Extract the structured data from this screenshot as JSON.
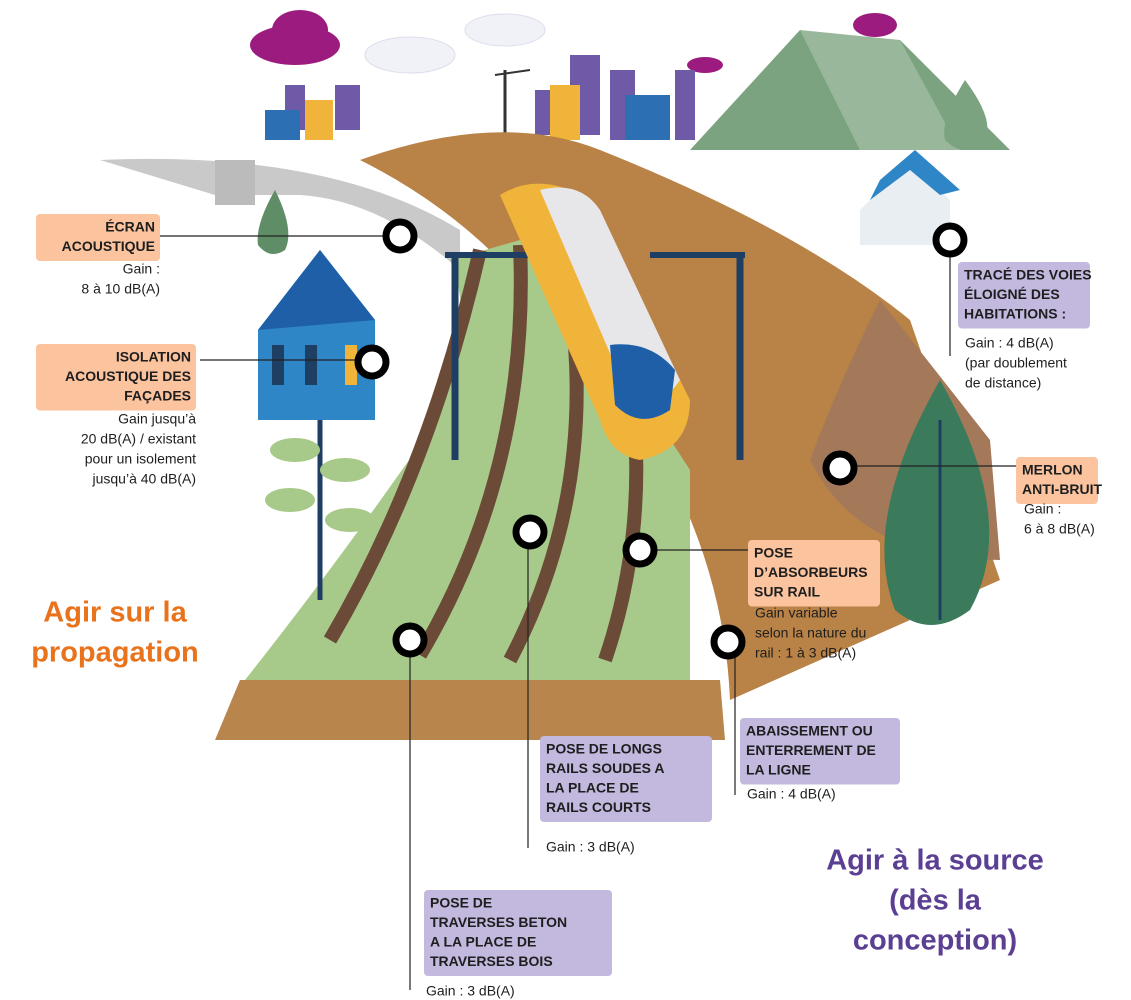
{
  "headings": {
    "propagation": [
      "Agir sur la",
      "propagation"
    ],
    "source": [
      "Agir à la source",
      "(dès la",
      "conception)"
    ]
  },
  "labels": [
    {
      "title": [
        "ÉCRAN",
        "ACOUSTIQUE"
      ],
      "gain": [
        "Gain :",
        "8 à 10 dB(A)"
      ]
    },
    {
      "title": [
        "ISOLATION",
        "ACOUSTIQUE DES",
        "FAÇADES"
      ],
      "gain": [
        "Gain jusqu’à",
        "20 dB(A) / existant",
        "pour un isolement",
        "jusqu’à 40 dB(A)"
      ]
    },
    {
      "title": [
        "TRACÉ DES VOIES",
        "ÉLOIGNÉ DES",
        "HABITATIONS  :"
      ],
      "gain": [
        "Gain : 4 dB(A)",
        "(par doublement",
        "de distance)"
      ]
    },
    {
      "title": [
        "MERLON",
        "ANTI-BRUIT"
      ],
      "gain": [
        "Gain :",
        "6 à 8 dB(A)"
      ]
    },
    {
      "title": [
        "POSE",
        "D’ABSORBEURS",
        "SUR RAIL"
      ],
      "gain": [
        "Gain variable",
        "selon la nature du",
        "rail : 1 à 3 dB(A)"
      ]
    },
    {
      "title": [
        "ABAISSEMENT OU",
        "ENTERREMENT DE",
        "LA LIGNE"
      ],
      "gain": [
        "Gain : 4 dB(A)"
      ]
    },
    {
      "title": [
        "POSE DE LONGS",
        "RAILS SOUDES A",
        "LA PLACE DE",
        "RAILS COURTS"
      ],
      "gain": [
        "Gain : 3 dB(A)"
      ]
    },
    {
      "title": [
        "POSE DE",
        "TRAVERSES BETON",
        "A LA PLACE DE",
        "TRAVERSES BOIS"
      ],
      "gain": [
        "Gain : 3 dB(A)"
      ]
    }
  ]
}
